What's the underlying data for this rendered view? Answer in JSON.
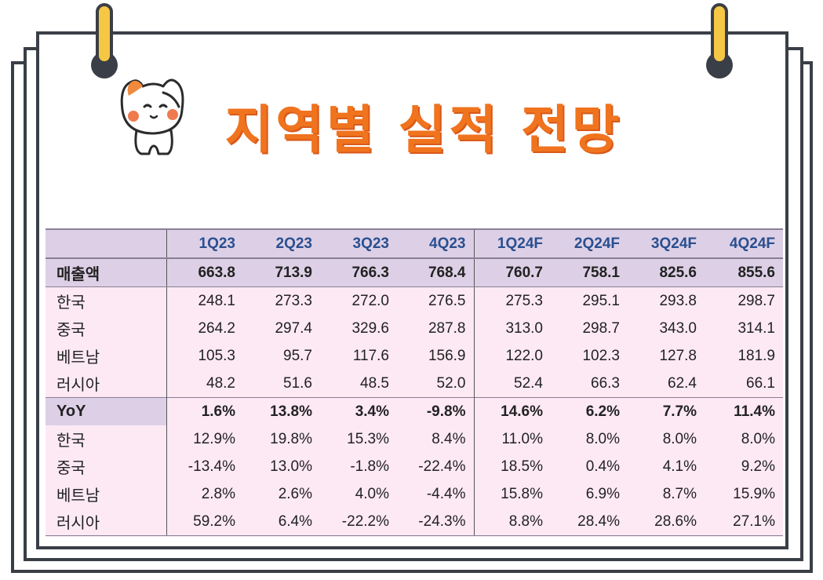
{
  "title": "지역별 실적 전망",
  "colors": {
    "title": "#f0731e",
    "header_bg": "#ddd0e6",
    "table_bg": "#fde9f4",
    "header_text": "#2a4f8f"
  },
  "table": {
    "columns": [
      "1Q23",
      "2Q23",
      "3Q23",
      "4Q23",
      "1Q24F",
      "2Q24F",
      "3Q24F",
      "4Q24F"
    ],
    "rows": [
      {
        "label": "매출액",
        "values": [
          "663.8",
          "713.9",
          "766.3",
          "768.4",
          "760.7",
          "758.1",
          "825.6",
          "855.6"
        ]
      },
      {
        "label": "한국",
        "values": [
          "248.1",
          "273.3",
          "272.0",
          "276.5",
          "275.3",
          "295.1",
          "293.8",
          "298.7"
        ]
      },
      {
        "label": "중국",
        "values": [
          "264.2",
          "297.4",
          "329.6",
          "287.8",
          "313.0",
          "298.7",
          "343.0",
          "314.1"
        ]
      },
      {
        "label": "베트남",
        "values": [
          "105.3",
          "95.7",
          "117.6",
          "156.9",
          "122.0",
          "102.3",
          "127.8",
          "181.9"
        ]
      },
      {
        "label": "러시아",
        "values": [
          "48.2",
          "51.6",
          "48.5",
          "52.0",
          "52.4",
          "66.3",
          "62.4",
          "66.1"
        ]
      },
      {
        "label": "YoY",
        "values": [
          "1.6%",
          "13.8%",
          "3.4%",
          "-9.8%",
          "14.6%",
          "6.2%",
          "7.7%",
          "11.4%"
        ]
      },
      {
        "label": "한국",
        "values": [
          "12.9%",
          "19.8%",
          "15.3%",
          "8.4%",
          "11.0%",
          "8.0%",
          "8.0%",
          "8.0%"
        ]
      },
      {
        "label": "중국",
        "values": [
          "-13.4%",
          "13.0%",
          "-1.8%",
          "-22.4%",
          "18.5%",
          "0.4%",
          "4.1%",
          "9.2%"
        ]
      },
      {
        "label": "베트남",
        "values": [
          "2.8%",
          "2.6%",
          "4.0%",
          "-4.4%",
          "15.8%",
          "6.9%",
          "8.7%",
          "15.9%"
        ]
      },
      {
        "label": "러시아",
        "values": [
          "59.2%",
          "6.4%",
          "-22.2%",
          "-24.3%",
          "8.8%",
          "28.4%",
          "28.6%",
          "27.1%"
        ]
      }
    ]
  }
}
